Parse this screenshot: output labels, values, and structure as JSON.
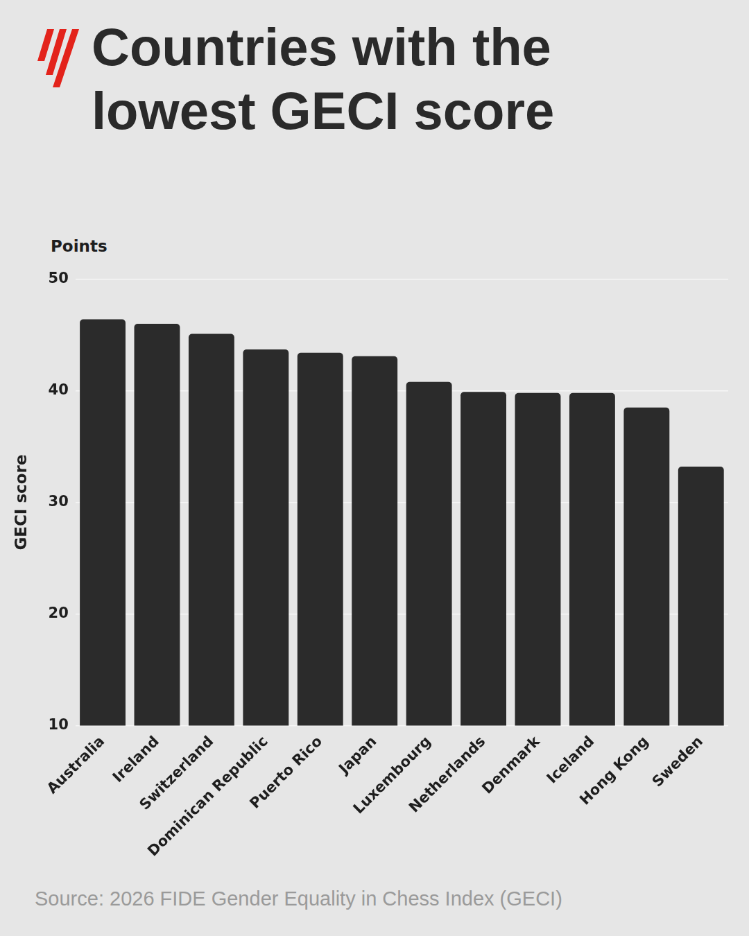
{
  "chart_data": {
    "type": "bar",
    "title": "Countries with the lowest GECI score",
    "ylabel": "GECI score",
    "y_units": "Points",
    "source": "Source: 2026 FIDE Gender Equality in Chess Index (GECI)",
    "categories": [
      "Australia",
      "Ireland",
      "Switzerland",
      "Dominican Republic",
      "Puerto Rico",
      "Japan",
      "Luxembourg",
      "Netherlands",
      "Denmark",
      "Iceland",
      "Hong Kong",
      "Sweden"
    ],
    "values": [
      46.4,
      46.0,
      45.1,
      43.7,
      43.4,
      43.1,
      40.8,
      39.9,
      39.8,
      39.8,
      38.5,
      33.2
    ],
    "color": "#2b2b2b",
    "ylim": [
      10,
      50
    ],
    "yticks": [
      10,
      20,
      30,
      40,
      50
    ],
    "grid": true
  }
}
